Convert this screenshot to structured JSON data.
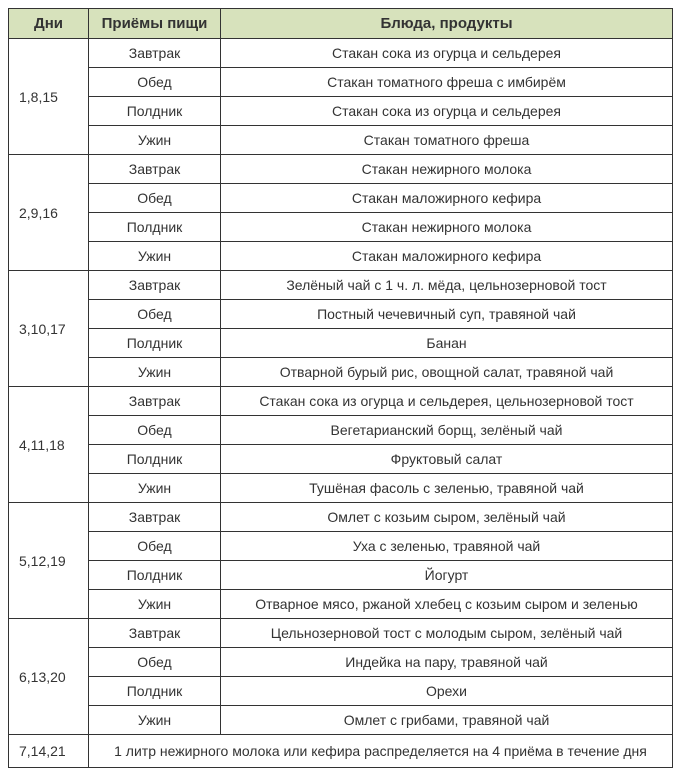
{
  "table": {
    "header_bg": "#d7e2bc",
    "columns": {
      "days": "Дни",
      "meals": "Приёмы пищи",
      "dishes": "Блюда, продукты"
    },
    "meal_labels": {
      "breakfast": "Завтрак",
      "lunch": "Обед",
      "snack": "Полдник",
      "dinner": "Ужин"
    },
    "groups": [
      {
        "days": "1,8,15",
        "rows": [
          {
            "meal": "Завтрак",
            "dish": "Стакан сока из огурца и сельдерея"
          },
          {
            "meal": "Обед",
            "dish": "Стакан томатного фреша с имбирём"
          },
          {
            "meal": "Полдник",
            "dish": "Стакан сока из огурца и сельдерея"
          },
          {
            "meal": "Ужин",
            "dish": "Стакан томатного фреша"
          }
        ]
      },
      {
        "days": "2,9,16",
        "rows": [
          {
            "meal": "Завтрак",
            "dish": "Стакан нежирного молока"
          },
          {
            "meal": "Обед",
            "dish": "Стакан маложирного кефира"
          },
          {
            "meal": "Полдник",
            "dish": "Стакан нежирного молока"
          },
          {
            "meal": "Ужин",
            "dish": "Стакан маложирного кефира"
          }
        ]
      },
      {
        "days": "3,10,17",
        "rows": [
          {
            "meal": "Завтрак",
            "dish": "Зелёный чай с 1 ч. л. мёда, цельнозерновой тост"
          },
          {
            "meal": "Обед",
            "dish": "Постный чечевичный суп, травяной чай"
          },
          {
            "meal": "Полдник",
            "dish": "Банан"
          },
          {
            "meal": "Ужин",
            "dish": "Отварной бурый рис, овощной салат, травяной чай"
          }
        ]
      },
      {
        "days": "4,11,18",
        "rows": [
          {
            "meal": "Завтрак",
            "dish": "Стакан сока из огурца и сельдерея, цельнозерновой тост"
          },
          {
            "meal": "Обед",
            "dish": "Вегетарианский борщ, зелёный чай"
          },
          {
            "meal": "Полдник",
            "dish": "Фруктовый салат"
          },
          {
            "meal": "Ужин",
            "dish": "Тушёная фасоль с зеленью, травяной чай"
          }
        ]
      },
      {
        "days": "5,12,19",
        "rows": [
          {
            "meal": "Завтрак",
            "dish": "Омлет с козьим сыром, зелёный чай"
          },
          {
            "meal": "Обед",
            "dish": "Уха с зеленью, травяной чай"
          },
          {
            "meal": "Полдник",
            "dish": "Йогурт"
          },
          {
            "meal": "Ужин",
            "dish": "Отварное мясо, ржаной хлебец с козьим сыром и зеленью"
          }
        ]
      },
      {
        "days": "6,13,20",
        "rows": [
          {
            "meal": "Завтрак",
            "dish": "Цельнозерновой тост с молодым сыром, зелёный чай"
          },
          {
            "meal": "Обед",
            "dish": "Индейка на пару, травяной чай"
          },
          {
            "meal": "Полдник",
            "dish": "Орехи"
          },
          {
            "meal": "Ужин",
            "dish": "Омлет с грибами, травяной чай"
          }
        ]
      }
    ],
    "final_row": {
      "days": "7,14,21",
      "text": "1 литр нежирного молока или кефира распределяется на 4 приёма в течение дня"
    }
  }
}
